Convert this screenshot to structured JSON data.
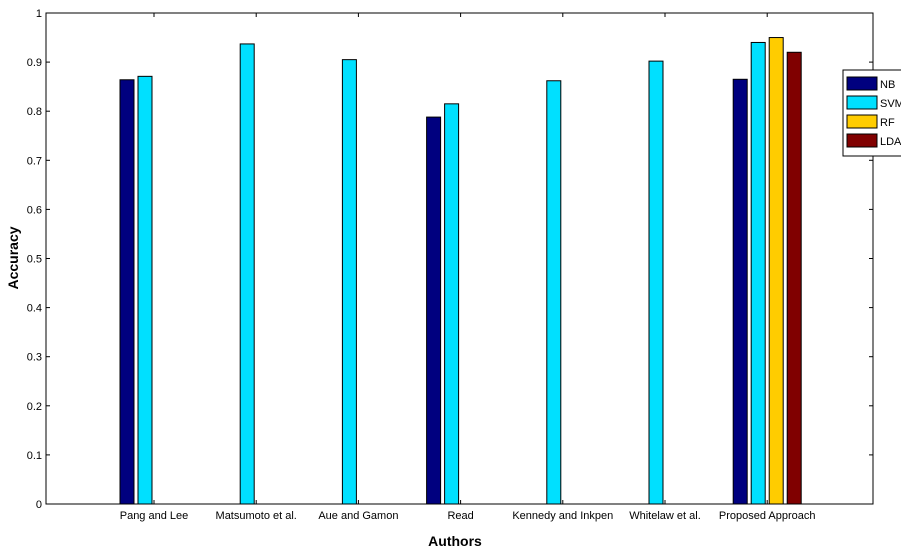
{
  "chart_data": {
    "type": "bar",
    "title": "",
    "xlabel": "Authors",
    "ylabel": "Accuracy",
    "ylim": [
      0,
      1
    ],
    "yticks": [
      "0",
      "0.1",
      "0.2",
      "0.3",
      "0.4",
      "0.5",
      "0.6",
      "0.7",
      "0.8",
      "0.9",
      "1"
    ],
    "categories": [
      "Pang and Lee",
      "Matsumoto et al.",
      "Aue and Gamon",
      "Read",
      "Kennedy and Inkpen",
      "Whitelaw et al.",
      "Proposed Approach"
    ],
    "series": [
      {
        "name": "NB",
        "color": "#00007f",
        "values": [
          0.864,
          null,
          null,
          0.788,
          null,
          null,
          0.865
        ]
      },
      {
        "name": "SVM",
        "color": "#00e0ff",
        "values": [
          0.871,
          0.937,
          0.905,
          0.815,
          0.862,
          0.902,
          0.94
        ]
      },
      {
        "name": "RF",
        "color": "#ffcc00",
        "values": [
          null,
          null,
          null,
          null,
          null,
          null,
          0.95
        ]
      },
      {
        "name": "LDA",
        "color": "#800000",
        "values": [
          null,
          null,
          null,
          null,
          null,
          null,
          0.92
        ]
      }
    ],
    "grid": false,
    "legend_position": "top-right"
  }
}
